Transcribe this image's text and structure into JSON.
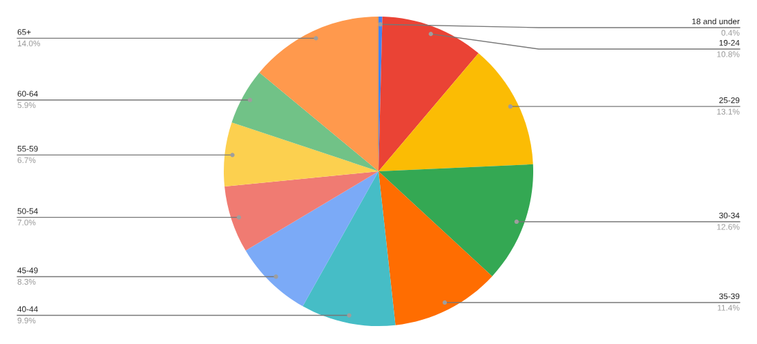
{
  "chart_data": {
    "type": "pie",
    "categories": [
      "18 and under",
      "19-24",
      "25-29",
      "30-34",
      "35-39",
      "40-44",
      "45-49",
      "50-54",
      "55-59",
      "60-64",
      "65+"
    ],
    "values": [
      0.4,
      10.8,
      13.1,
      12.6,
      11.4,
      9.9,
      8.3,
      7.0,
      6.7,
      5.9,
      14.0
    ],
    "colors": [
      "#4285f4",
      "#ea4335",
      "#fbbc04",
      "#34a853",
      "#ff6d01",
      "#46bdc6",
      "#7baaf7",
      "#f07b72",
      "#fcd04f",
      "#71c287",
      "#ff994d"
    ],
    "value_labels": [
      "0.4%",
      "10.8%",
      "13.1%",
      "12.6%",
      "11.4%",
      "9.9%",
      "8.3%",
      "7.0%",
      "6.7%",
      "5.9%",
      "14.0%"
    ]
  }
}
